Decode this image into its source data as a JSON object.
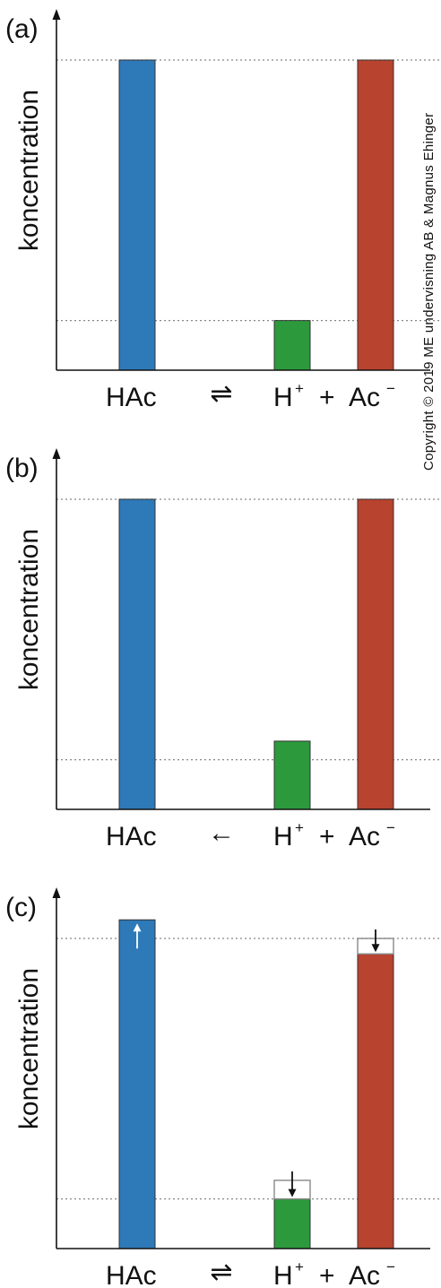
{
  "copyright": "Copyright © 2019 ME undervisning AB & Magnus Ehinger",
  "colors": {
    "hac": "#2e7ab8",
    "h": "#2c9a3c",
    "ac": "#b8432f"
  },
  "labels": {
    "hac": "HAc",
    "h": "H",
    "h_charge": "+",
    "plus": "+",
    "ac": "Ac",
    "ac_charge": "−"
  },
  "chart_data": [
    {
      "type": "bar",
      "panel": "(a)",
      "ylabel": "koncentration",
      "arrow": "equilibrium",
      "arrow_symbol": "⇌",
      "categories": [
        "HAc",
        "H+",
        "Ac−"
      ],
      "values": [
        1.0,
        0.16,
        1.0
      ],
      "reference_lines": [
        1.0,
        0.16
      ]
    },
    {
      "type": "bar",
      "panel": "(b)",
      "ylabel": "koncentration",
      "arrow": "left",
      "arrow_symbol": "←",
      "categories": [
        "HAc",
        "H+",
        "Ac−"
      ],
      "values": [
        1.0,
        0.22,
        1.0
      ],
      "reference_lines": [
        1.0,
        0.16
      ]
    },
    {
      "type": "bar",
      "panel": "(c)",
      "ylabel": "koncentration",
      "arrow": "equilibrium",
      "arrow_symbol": "⇌",
      "categories": [
        "HAc",
        "H+",
        "Ac−"
      ],
      "values": [
        1.06,
        0.16,
        0.95
      ],
      "previous_values": [
        1.0,
        0.22,
        1.0
      ],
      "changes": [
        "up",
        "down",
        "down"
      ],
      "reference_lines": [
        1.0,
        0.16
      ]
    }
  ]
}
